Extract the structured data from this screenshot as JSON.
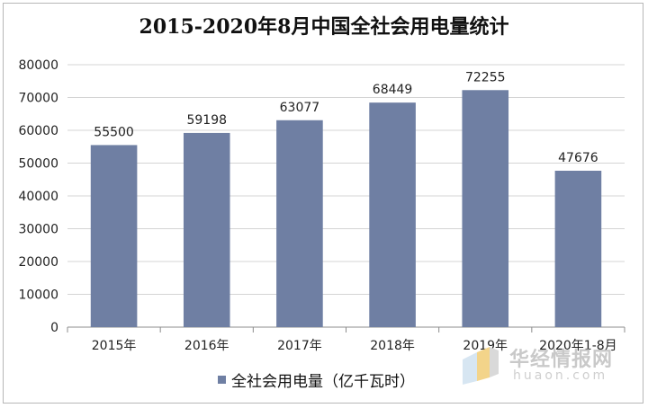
{
  "chart_data": {
    "type": "bar",
    "title": "2015-2020年8月中国全社会用电量统计",
    "categories": [
      "2015年",
      "2016年",
      "2017年",
      "2018年",
      "2019年",
      "2020年1-8月"
    ],
    "series": [
      {
        "name": "全社会用电量（亿千瓦时）",
        "values": [
          55500,
          59198,
          63077,
          68449,
          72255,
          47676
        ]
      }
    ],
    "data_labels": [
      "55500",
      "59198",
      "63077",
      "68449",
      "72255",
      "47676"
    ],
    "y_ticks": [
      "0",
      "10000",
      "20000",
      "30000",
      "40000",
      "50000",
      "60000",
      "70000",
      "80000"
    ],
    "ylim": [
      0,
      80000
    ],
    "xlabel": "",
    "ylabel": "",
    "grid": true,
    "legend_position": "bottom",
    "bar_color": "#6f7fa3"
  },
  "watermark": {
    "text": "华经情报网",
    "subtext": "huaon.com"
  }
}
